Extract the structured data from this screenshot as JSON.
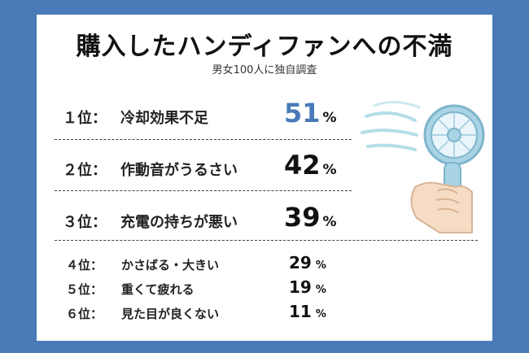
{
  "title": "購入したハンディファンへの不満",
  "subtitle": "男女100人に独自調査",
  "rankings": [
    {
      "rank": "１位：",
      "label": "冷却効果不足",
      "value": "51",
      "unit": "%",
      "highlight": true
    },
    {
      "rank": "２位：",
      "label": "作動音がうるさい",
      "value": "42",
      "unit": "%",
      "highlight": false
    },
    {
      "rank": "３位：",
      "label": "充電の持ちが悪い",
      "value": "39",
      "unit": "%",
      "highlight": false
    },
    {
      "rank": "４位：",
      "label": "かさばる・大きい",
      "value": "29",
      "unit": "%",
      "highlight": false
    },
    {
      "rank": "５位：",
      "label": "重くて疲れる",
      "value": "19",
      "unit": "%",
      "highlight": false
    },
    {
      "rank": "６位：",
      "label": "見た目が良くない",
      "value": "11",
      "unit": "%",
      "highlight": false
    }
  ],
  "colors": {
    "background": "#4a7ab8",
    "accent": "#4a7ab8",
    "fan": "#a9d4e6",
    "hand": "#f6dcc4"
  },
  "illustration": "hand-holding-fan-icon"
}
